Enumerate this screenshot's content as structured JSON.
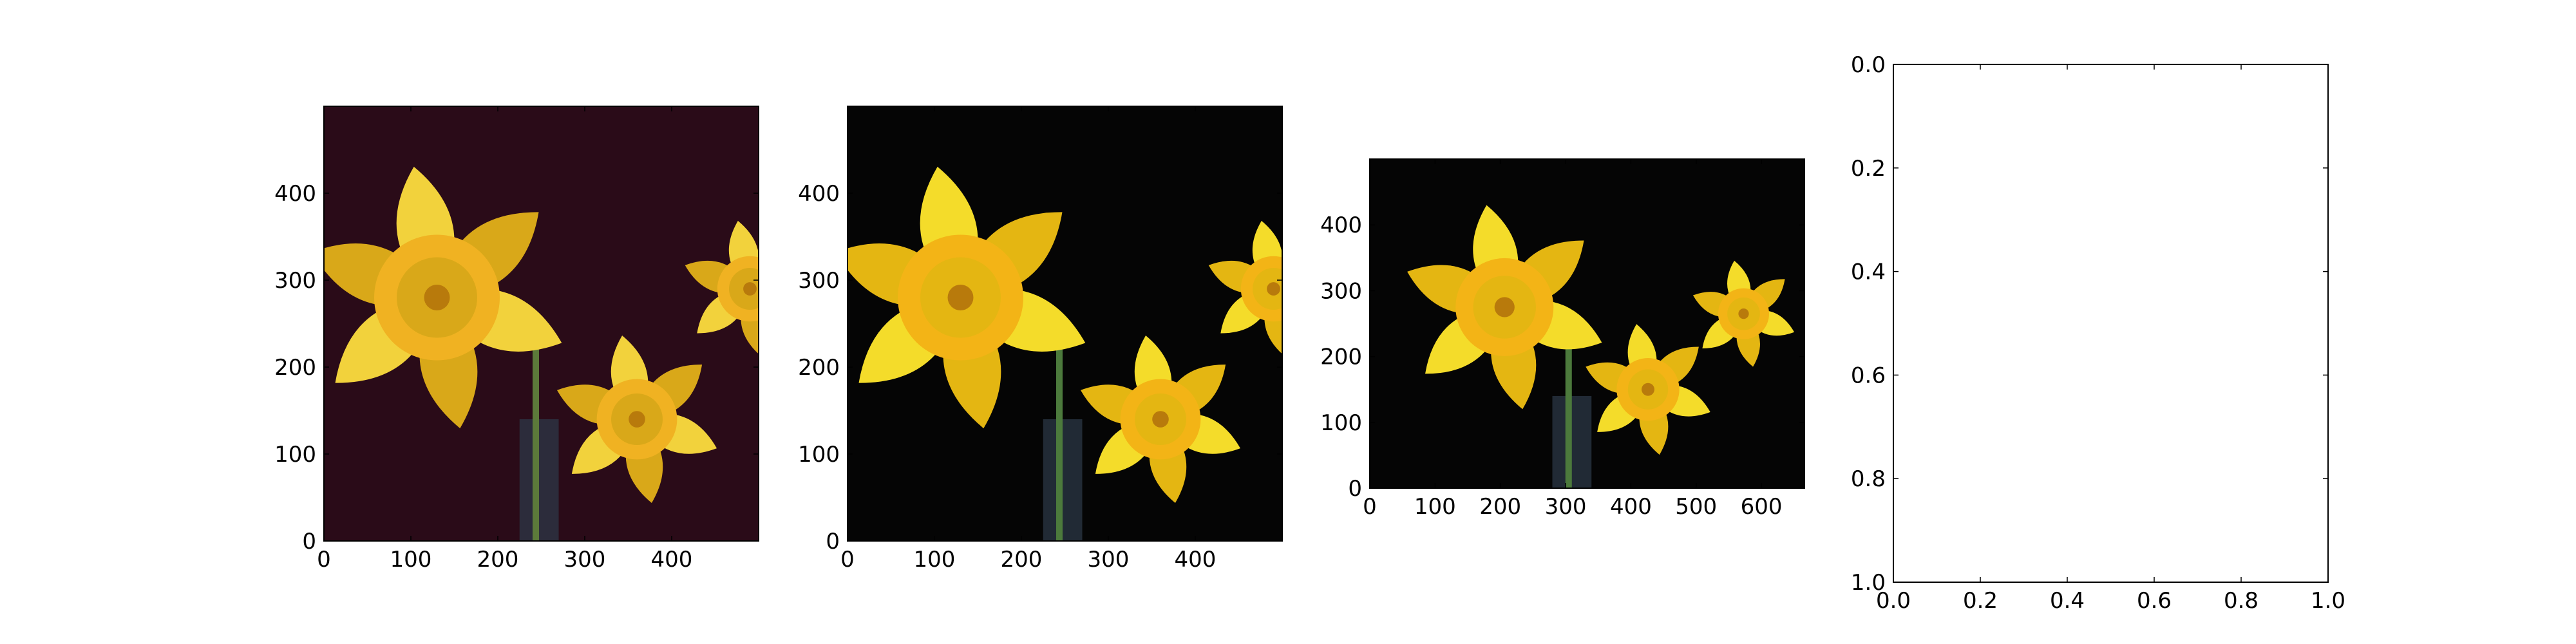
{
  "figure": {
    "background": "#ffffff",
    "tick_color": "#000000"
  },
  "panels": [
    {
      "kind": "image",
      "content": "daffodils photo (dark magenta-tinted background)",
      "palette": {
        "background": "#2a0b18",
        "petal": "#f2d23c",
        "petal_shade": "#d9a819",
        "trumpet": "#f0b222",
        "stem": "#5c7a3a"
      }
    },
    {
      "kind": "image",
      "content": "daffodils photo (black background)",
      "palette": {
        "background": "#050505",
        "petal": "#f4dc2a",
        "petal_shade": "#e4b612",
        "trumpet": "#f3b416",
        "stem": "#4c7a3c"
      }
    },
    {
      "kind": "image",
      "content": "daffodils photo (black background, wider)",
      "palette": {
        "background": "#050505",
        "petal": "#f4dc2a",
        "petal_shade": "#e4b612",
        "trumpet": "#f3b416",
        "stem": "#4c7a3c"
      }
    },
    {
      "kind": "empty-axes"
    }
  ],
  "chart_data": [
    {
      "type": "image",
      "x_ticks": [
        0,
        100,
        200,
        300,
        400
      ],
      "y_ticks": [
        0,
        100,
        200,
        300,
        400
      ],
      "xlim": [
        0,
        500
      ],
      "ylim": [
        500,
        0
      ]
    },
    {
      "type": "image",
      "x_ticks": [
        0,
        100,
        200,
        300,
        400
      ],
      "y_ticks": [
        0,
        100,
        200,
        300,
        400
      ],
      "xlim": [
        0,
        500
      ],
      "ylim": [
        500,
        0
      ]
    },
    {
      "type": "image",
      "x_ticks": [
        0,
        100,
        200,
        300,
        400,
        500,
        600
      ],
      "y_ticks": [
        0,
        100,
        200,
        300,
        400
      ],
      "xlim": [
        0,
        666
      ],
      "ylim": [
        500,
        0
      ]
    },
    {
      "type": "scatter",
      "x_ticks": [
        "0.0",
        "0.2",
        "0.4",
        "0.6",
        "0.8",
        "1.0"
      ],
      "y_ticks": [
        "0.0",
        "0.2",
        "0.4",
        "0.6",
        "0.8",
        "1.0"
      ],
      "xlim": [
        0,
        1
      ],
      "ylim": [
        0,
        1
      ],
      "grid": false
    }
  ]
}
